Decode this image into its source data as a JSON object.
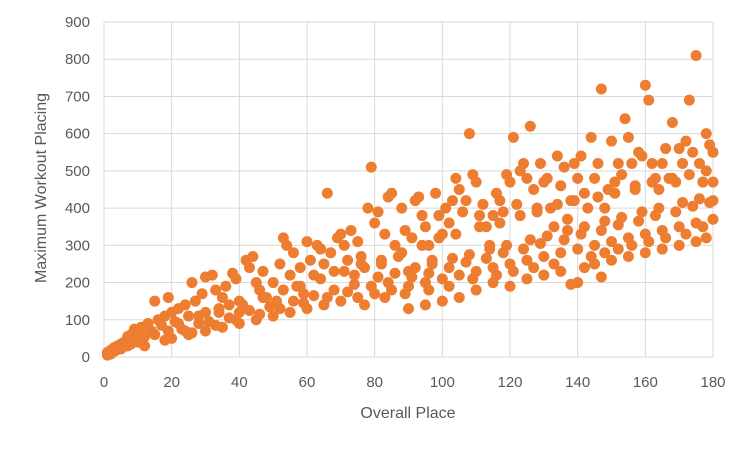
{
  "chart_data": {
    "type": "scatter",
    "title": "",
    "xlabel": "Overall Place",
    "ylabel": "Maximum Workout Placing",
    "xlim": [
      0,
      180
    ],
    "ylim": [
      0,
      900
    ],
    "x_ticks": [
      0,
      20,
      40,
      60,
      80,
      100,
      120,
      140,
      160,
      180
    ],
    "y_ticks": [
      0,
      100,
      200,
      300,
      400,
      500,
      600,
      700,
      800,
      900
    ],
    "grid": true,
    "legend": "none",
    "marker_color": "#ED7D31",
    "grid_color": "#D9D9D9",
    "points": [
      [
        1,
        5
      ],
      [
        1,
        12
      ],
      [
        2,
        18
      ],
      [
        2,
        8
      ],
      [
        3,
        25
      ],
      [
        3,
        15
      ],
      [
        4,
        30
      ],
      [
        4,
        20
      ],
      [
        5,
        35
      ],
      [
        5,
        22
      ],
      [
        6,
        40
      ],
      [
        6,
        28
      ],
      [
        7,
        55
      ],
      [
        7,
        30
      ],
      [
        8,
        60
      ],
      [
        8,
        35
      ],
      [
        9,
        75
      ],
      [
        9,
        45
      ],
      [
        10,
        65
      ],
      [
        10,
        40
      ],
      [
        11,
        80
      ],
      [
        12,
        55
      ],
      [
        13,
        90
      ],
      [
        14,
        70
      ],
      [
        15,
        150
      ],
      [
        15,
        60
      ],
      [
        16,
        100
      ],
      [
        17,
        85
      ],
      [
        18,
        110
      ],
      [
        19,
        160
      ],
      [
        19,
        70
      ],
      [
        20,
        120
      ],
      [
        21,
        95
      ],
      [
        22,
        130
      ],
      [
        23,
        75
      ],
      [
        24,
        140
      ],
      [
        25,
        110
      ],
      [
        26,
        200
      ],
      [
        27,
        150
      ],
      [
        28,
        90
      ],
      [
        29,
        170
      ],
      [
        30,
        215
      ],
      [
        30,
        120
      ],
      [
        32,
        220
      ],
      [
        33,
        180
      ],
      [
        34,
        130
      ],
      [
        35,
        160
      ],
      [
        36,
        190
      ],
      [
        37,
        140
      ],
      [
        38,
        225
      ],
      [
        39,
        210
      ],
      [
        40,
        150
      ],
      [
        40,
        120
      ],
      [
        42,
        260
      ],
      [
        43,
        240
      ],
      [
        44,
        270
      ],
      [
        45,
        200
      ],
      [
        46,
        180
      ],
      [
        47,
        230
      ],
      [
        48,
        160
      ],
      [
        50,
        200
      ],
      [
        51,
        150
      ],
      [
        52,
        250
      ],
      [
        53,
        320
      ],
      [
        54,
        300
      ],
      [
        55,
        220
      ],
      [
        56,
        280
      ],
      [
        57,
        190
      ],
      [
        58,
        240
      ],
      [
        59,
        170
      ],
      [
        60,
        310
      ],
      [
        61,
        260
      ],
      [
        62,
        220
      ],
      [
        63,
        300
      ],
      [
        64,
        290
      ],
      [
        65,
        250
      ],
      [
        66,
        440
      ],
      [
        67,
        280
      ],
      [
        68,
        230
      ],
      [
        69,
        320
      ],
      [
        70,
        330
      ],
      [
        71,
        300
      ],
      [
        72,
        260
      ],
      [
        73,
        340
      ],
      [
        74,
        220
      ],
      [
        75,
        310
      ],
      [
        76,
        270
      ],
      [
        77,
        240
      ],
      [
        78,
        400
      ],
      [
        79,
        510
      ],
      [
        80,
        360
      ],
      [
        81,
        390
      ],
      [
        82,
        250
      ],
      [
        83,
        330
      ],
      [
        84,
        430
      ],
      [
        85,
        440
      ],
      [
        86,
        300
      ],
      [
        87,
        270
      ],
      [
        88,
        400
      ],
      [
        89,
        340
      ],
      [
        90,
        230
      ],
      [
        91,
        320
      ],
      [
        92,
        420
      ],
      [
        93,
        430
      ],
      [
        94,
        380
      ],
      [
        95,
        350
      ],
      [
        96,
        300
      ],
      [
        97,
        260
      ],
      [
        98,
        440
      ],
      [
        99,
        380
      ],
      [
        100,
        330
      ],
      [
        101,
        400
      ],
      [
        102,
        360
      ],
      [
        103,
        420
      ],
      [
        104,
        480
      ],
      [
        105,
        450
      ],
      [
        106,
        390
      ],
      [
        107,
        420
      ],
      [
        108,
        600
      ],
      [
        109,
        490
      ],
      [
        110,
        470
      ],
      [
        111,
        380
      ],
      [
        112,
        410
      ],
      [
        113,
        350
      ],
      [
        114,
        300
      ],
      [
        115,
        380
      ],
      [
        116,
        440
      ],
      [
        117,
        420
      ],
      [
        118,
        390
      ],
      [
        119,
        490
      ],
      [
        120,
        470
      ],
      [
        121,
        590
      ],
      [
        122,
        410
      ],
      [
        123,
        500
      ],
      [
        124,
        520
      ],
      [
        125,
        480
      ],
      [
        126,
        620
      ],
      [
        127,
        450
      ],
      [
        128,
        400
      ],
      [
        129,
        520
      ],
      [
        130,
        470
      ],
      [
        131,
        480
      ],
      [
        132,
        400
      ],
      [
        133,
        350
      ],
      [
        134,
        540
      ],
      [
        135,
        460
      ],
      [
        136,
        510
      ],
      [
        137,
        370
      ],
      [
        138,
        420
      ],
      [
        139,
        520
      ],
      [
        140,
        480
      ],
      [
        141,
        540
      ],
      [
        142,
        440
      ],
      [
        143,
        400
      ],
      [
        144,
        590
      ],
      [
        145,
        480
      ],
      [
        146,
        520
      ],
      [
        147,
        720
      ],
      [
        148,
        400
      ],
      [
        149,
        450
      ],
      [
        150,
        580
      ],
      [
        151,
        470
      ],
      [
        152,
        520
      ],
      [
        153,
        490
      ],
      [
        154,
        640
      ],
      [
        155,
        590
      ],
      [
        156,
        520
      ],
      [
        157,
        450
      ],
      [
        158,
        550
      ],
      [
        159,
        540
      ],
      [
        160,
        730
      ],
      [
        161,
        690
      ],
      [
        162,
        520
      ],
      [
        163,
        480
      ],
      [
        164,
        450
      ],
      [
        165,
        520
      ],
      [
        166,
        560
      ],
      [
        167,
        480
      ],
      [
        168,
        630
      ],
      [
        169,
        470
      ],
      [
        170,
        560
      ],
      [
        171,
        520
      ],
      [
        172,
        580
      ],
      [
        173,
        690
      ],
      [
        174,
        550
      ],
      [
        175,
        810
      ],
      [
        176,
        520
      ],
      [
        177,
        470
      ],
      [
        178,
        600
      ],
      [
        179,
        570
      ],
      [
        180,
        550
      ],
      [
        180,
        470
      ],
      [
        180,
        420
      ],
      [
        20,
        50
      ],
      [
        25,
        60
      ],
      [
        30,
        70
      ],
      [
        35,
        80
      ],
      [
        40,
        90
      ],
      [
        45,
        100
      ],
      [
        50,
        110
      ],
      [
        55,
        120
      ],
      [
        60,
        130
      ],
      [
        65,
        140
      ],
      [
        70,
        150
      ],
      [
        75,
        160
      ],
      [
        80,
        170
      ],
      [
        85,
        180
      ],
      [
        90,
        190
      ],
      [
        95,
        200
      ],
      [
        100,
        210
      ],
      [
        105,
        220
      ],
      [
        110,
        230
      ],
      [
        115,
        240
      ],
      [
        120,
        250
      ],
      [
        125,
        260
      ],
      [
        130,
        270
      ],
      [
        135,
        280
      ],
      [
        140,
        290
      ],
      [
        145,
        300
      ],
      [
        150,
        310
      ],
      [
        155,
        320
      ],
      [
        160,
        330
      ],
      [
        165,
        340
      ],
      [
        170,
        350
      ],
      [
        175,
        360
      ],
      [
        180,
        370
      ],
      [
        22,
        90
      ],
      [
        28,
        110
      ],
      [
        34,
        120
      ],
      [
        41,
        140
      ],
      [
        47,
        160
      ],
      [
        53,
        180
      ],
      [
        58,
        190
      ],
      [
        64,
        210
      ],
      [
        71,
        230
      ],
      [
        76,
        250
      ],
      [
        82,
        260
      ],
      [
        88,
        280
      ],
      [
        94,
        300
      ],
      [
        99,
        320
      ],
      [
        104,
        330
      ],
      [
        111,
        350
      ],
      [
        117,
        360
      ],
      [
        123,
        380
      ],
      [
        128,
        390
      ],
      [
        134,
        410
      ],
      [
        139,
        420
      ],
      [
        146,
        430
      ],
      [
        151,
        440
      ],
      [
        157,
        460
      ],
      [
        162,
        470
      ],
      [
        168,
        480
      ],
      [
        173,
        490
      ],
      [
        178,
        500
      ],
      [
        24,
        70
      ],
      [
        31,
        95
      ],
      [
        37,
        105
      ],
      [
        43,
        125
      ],
      [
        49,
        135
      ],
      [
        56,
        150
      ],
      [
        62,
        165
      ],
      [
        68,
        180
      ],
      [
        74,
        195
      ],
      [
        81,
        215
      ],
      [
        86,
        225
      ],
      [
        92,
        240
      ],
      [
        97,
        250
      ],
      [
        103,
        265
      ],
      [
        108,
        275
      ],
      [
        114,
        290
      ],
      [
        119,
        300
      ],
      [
        126,
        315
      ],
      [
        131,
        325
      ],
      [
        137,
        340
      ],
      [
        142,
        350
      ],
      [
        148,
        365
      ],
      [
        153,
        375
      ],
      [
        159,
        390
      ],
      [
        164,
        400
      ],
      [
        171,
        415
      ],
      [
        176,
        425
      ],
      [
        12,
        30
      ],
      [
        18,
        45
      ],
      [
        26,
        65
      ],
      [
        33,
        85
      ],
      [
        39,
        100
      ],
      [
        46,
        115
      ],
      [
        52,
        130
      ],
      [
        59,
        145
      ],
      [
        66,
        160
      ],
      [
        72,
        175
      ],
      [
        79,
        190
      ],
      [
        84,
        200
      ],
      [
        91,
        215
      ],
      [
        96,
        225
      ],
      [
        102,
        240
      ],
      [
        107,
        255
      ],
      [
        113,
        265
      ],
      [
        118,
        280
      ],
      [
        124,
        290
      ],
      [
        129,
        305
      ],
      [
        136,
        315
      ],
      [
        141,
        330
      ],
      [
        147,
        340
      ],
      [
        152,
        355
      ],
      [
        158,
        365
      ],
      [
        163,
        380
      ],
      [
        169,
        390
      ],
      [
        174,
        405
      ],
      [
        179,
        415
      ],
      [
        110,
        180
      ],
      [
        115,
        200
      ],
      [
        120,
        190
      ],
      [
        125,
        210
      ],
      [
        130,
        220
      ],
      [
        135,
        230
      ],
      [
        140,
        200
      ],
      [
        145,
        250
      ],
      [
        147,
        215
      ],
      [
        150,
        260
      ],
      [
        155,
        270
      ],
      [
        160,
        280
      ],
      [
        165,
        290
      ],
      [
        170,
        300
      ],
      [
        175,
        310
      ],
      [
        178,
        320
      ],
      [
        100,
        150
      ],
      [
        105,
        160
      ],
      [
        95,
        140
      ],
      [
        90,
        130
      ],
      [
        138,
        195
      ],
      [
        142,
        240
      ],
      [
        148,
        280
      ],
      [
        156,
        300
      ],
      [
        166,
        320
      ],
      [
        172,
        330
      ],
      [
        177,
        350
      ],
      [
        161,
        310
      ],
      [
        152,
        290
      ],
      [
        144,
        270
      ],
      [
        133,
        250
      ],
      [
        127,
        240
      ],
      [
        121,
        230
      ],
      [
        116,
        220
      ],
      [
        109,
        210
      ],
      [
        102,
        190
      ],
      [
        96,
        180
      ],
      [
        89,
        170
      ],
      [
        83,
        160
      ],
      [
        77,
        140
      ]
    ]
  }
}
